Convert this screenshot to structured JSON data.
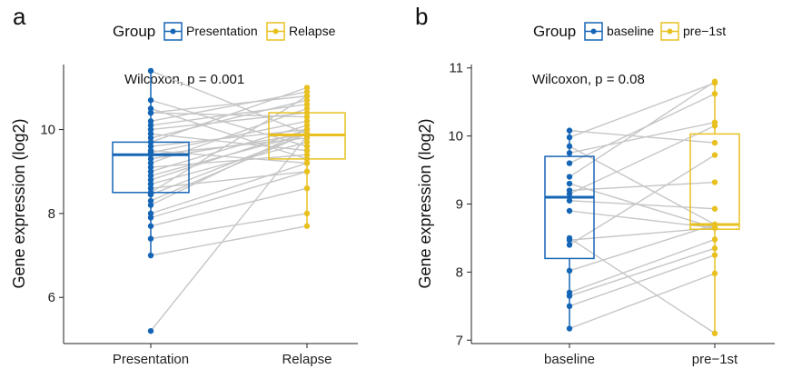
{
  "chart_data": [
    {
      "type": "box-paired",
      "panel_label": "a",
      "legend": {
        "title": "Group",
        "entries": [
          "Presentation",
          "Relapse"
        ],
        "position": "top"
      },
      "colors": {
        "Presentation": "#1565b6",
        "Relapse": "#e8c121",
        "pair_line": "#c6c6c6"
      },
      "annotation": "Wilcoxon, p = 0.001",
      "xlabel": "",
      "ylabel": "Gene expression (log2)",
      "categories": [
        "Presentation",
        "Relapse"
      ],
      "ylim": [
        4.9,
        11.55
      ],
      "yticks": [
        6,
        8,
        10
      ],
      "box_stats": [
        {
          "group": "Presentation",
          "q1": 8.5,
          "median": 9.4,
          "q3": 9.7,
          "whisker_low": 7.0,
          "whisker_high": 11.4
        },
        {
          "group": "Relapse",
          "q1": 9.3,
          "median": 9.87,
          "q3": 10.4,
          "whisker_low": 7.7,
          "whisker_high": 11.0
        }
      ],
      "pairs": [
        [
          11.4,
          9.9
        ],
        [
          10.7,
          9.6
        ],
        [
          10.5,
          9.3
        ],
        [
          10.4,
          10.8
        ],
        [
          10.4,
          10.3
        ],
        [
          10.2,
          10.9
        ],
        [
          10.1,
          10.6
        ],
        [
          10.0,
          10.4
        ],
        [
          9.9,
          9.5
        ],
        [
          9.8,
          10.7
        ],
        [
          9.7,
          11.0
        ],
        [
          9.6,
          10.0
        ],
        [
          9.5,
          9.2
        ],
        [
          9.45,
          10.2
        ],
        [
          9.4,
          9.8
        ],
        [
          9.3,
          9.9
        ],
        [
          9.2,
          10.5
        ],
        [
          9.1,
          9.4
        ],
        [
          9.0,
          10.1
        ],
        [
          8.9,
          9.9
        ],
        [
          8.8,
          10.0
        ],
        [
          8.7,
          9.7
        ],
        [
          8.6,
          9.0
        ],
        [
          8.5,
          10.8
        ],
        [
          8.45,
          9.9
        ],
        [
          8.3,
          9.9
        ],
        [
          8.2,
          10.0
        ],
        [
          8.0,
          9.2
        ],
        [
          7.9,
          9.0
        ],
        [
          7.7,
          8.6
        ],
        [
          7.4,
          8.0
        ],
        [
          7.0,
          7.7
        ],
        [
          5.2,
          9.85
        ]
      ]
    },
    {
      "type": "box-paired",
      "panel_label": "b",
      "legend": {
        "title": "Group",
        "entries": [
          "baseline",
          "pre−1st"
        ],
        "position": "top"
      },
      "colors": {
        "baseline": "#1565b6",
        "pre−1st": "#e8c121",
        "pair_line": "#c6c6c6"
      },
      "annotation": "Wilcoxon, p = 0.08",
      "xlabel": "",
      "ylabel": "Gene expression (log2)",
      "categories": [
        "baseline",
        "pre−1st"
      ],
      "ylim": [
        6.95,
        11.05
      ],
      "yticks": [
        7,
        8,
        9,
        10,
        11
      ],
      "box_stats": [
        {
          "group": "baseline",
          "q1": 8.2,
          "median": 9.1,
          "q3": 9.7,
          "whisker_low": 7.17,
          "whisker_high": 10.08
        },
        {
          "group": "pre−1st",
          "q1": 8.63,
          "median": 8.7,
          "q3": 10.03,
          "whisker_low": 7.1,
          "whisker_high": 10.82
        }
      ],
      "pairs": [
        [
          10.08,
          9.9
        ],
        [
          9.98,
          10.78
        ],
        [
          9.85,
          8.7
        ],
        [
          9.75,
          10.2
        ],
        [
          9.6,
          10.62
        ],
        [
          9.4,
          10.8
        ],
        [
          9.3,
          8.65
        ],
        [
          9.2,
          9.32
        ],
        [
          9.15,
          10.15
        ],
        [
          9.05,
          8.93
        ],
        [
          8.9,
          8.65
        ],
        [
          8.5,
          7.1
        ],
        [
          8.47,
          8.65
        ],
        [
          8.4,
          9.72
        ],
        [
          8.02,
          8.7
        ],
        [
          7.7,
          8.48
        ],
        [
          7.65,
          8.35
        ],
        [
          7.5,
          8.25
        ],
        [
          7.17,
          7.98
        ]
      ]
    }
  ]
}
